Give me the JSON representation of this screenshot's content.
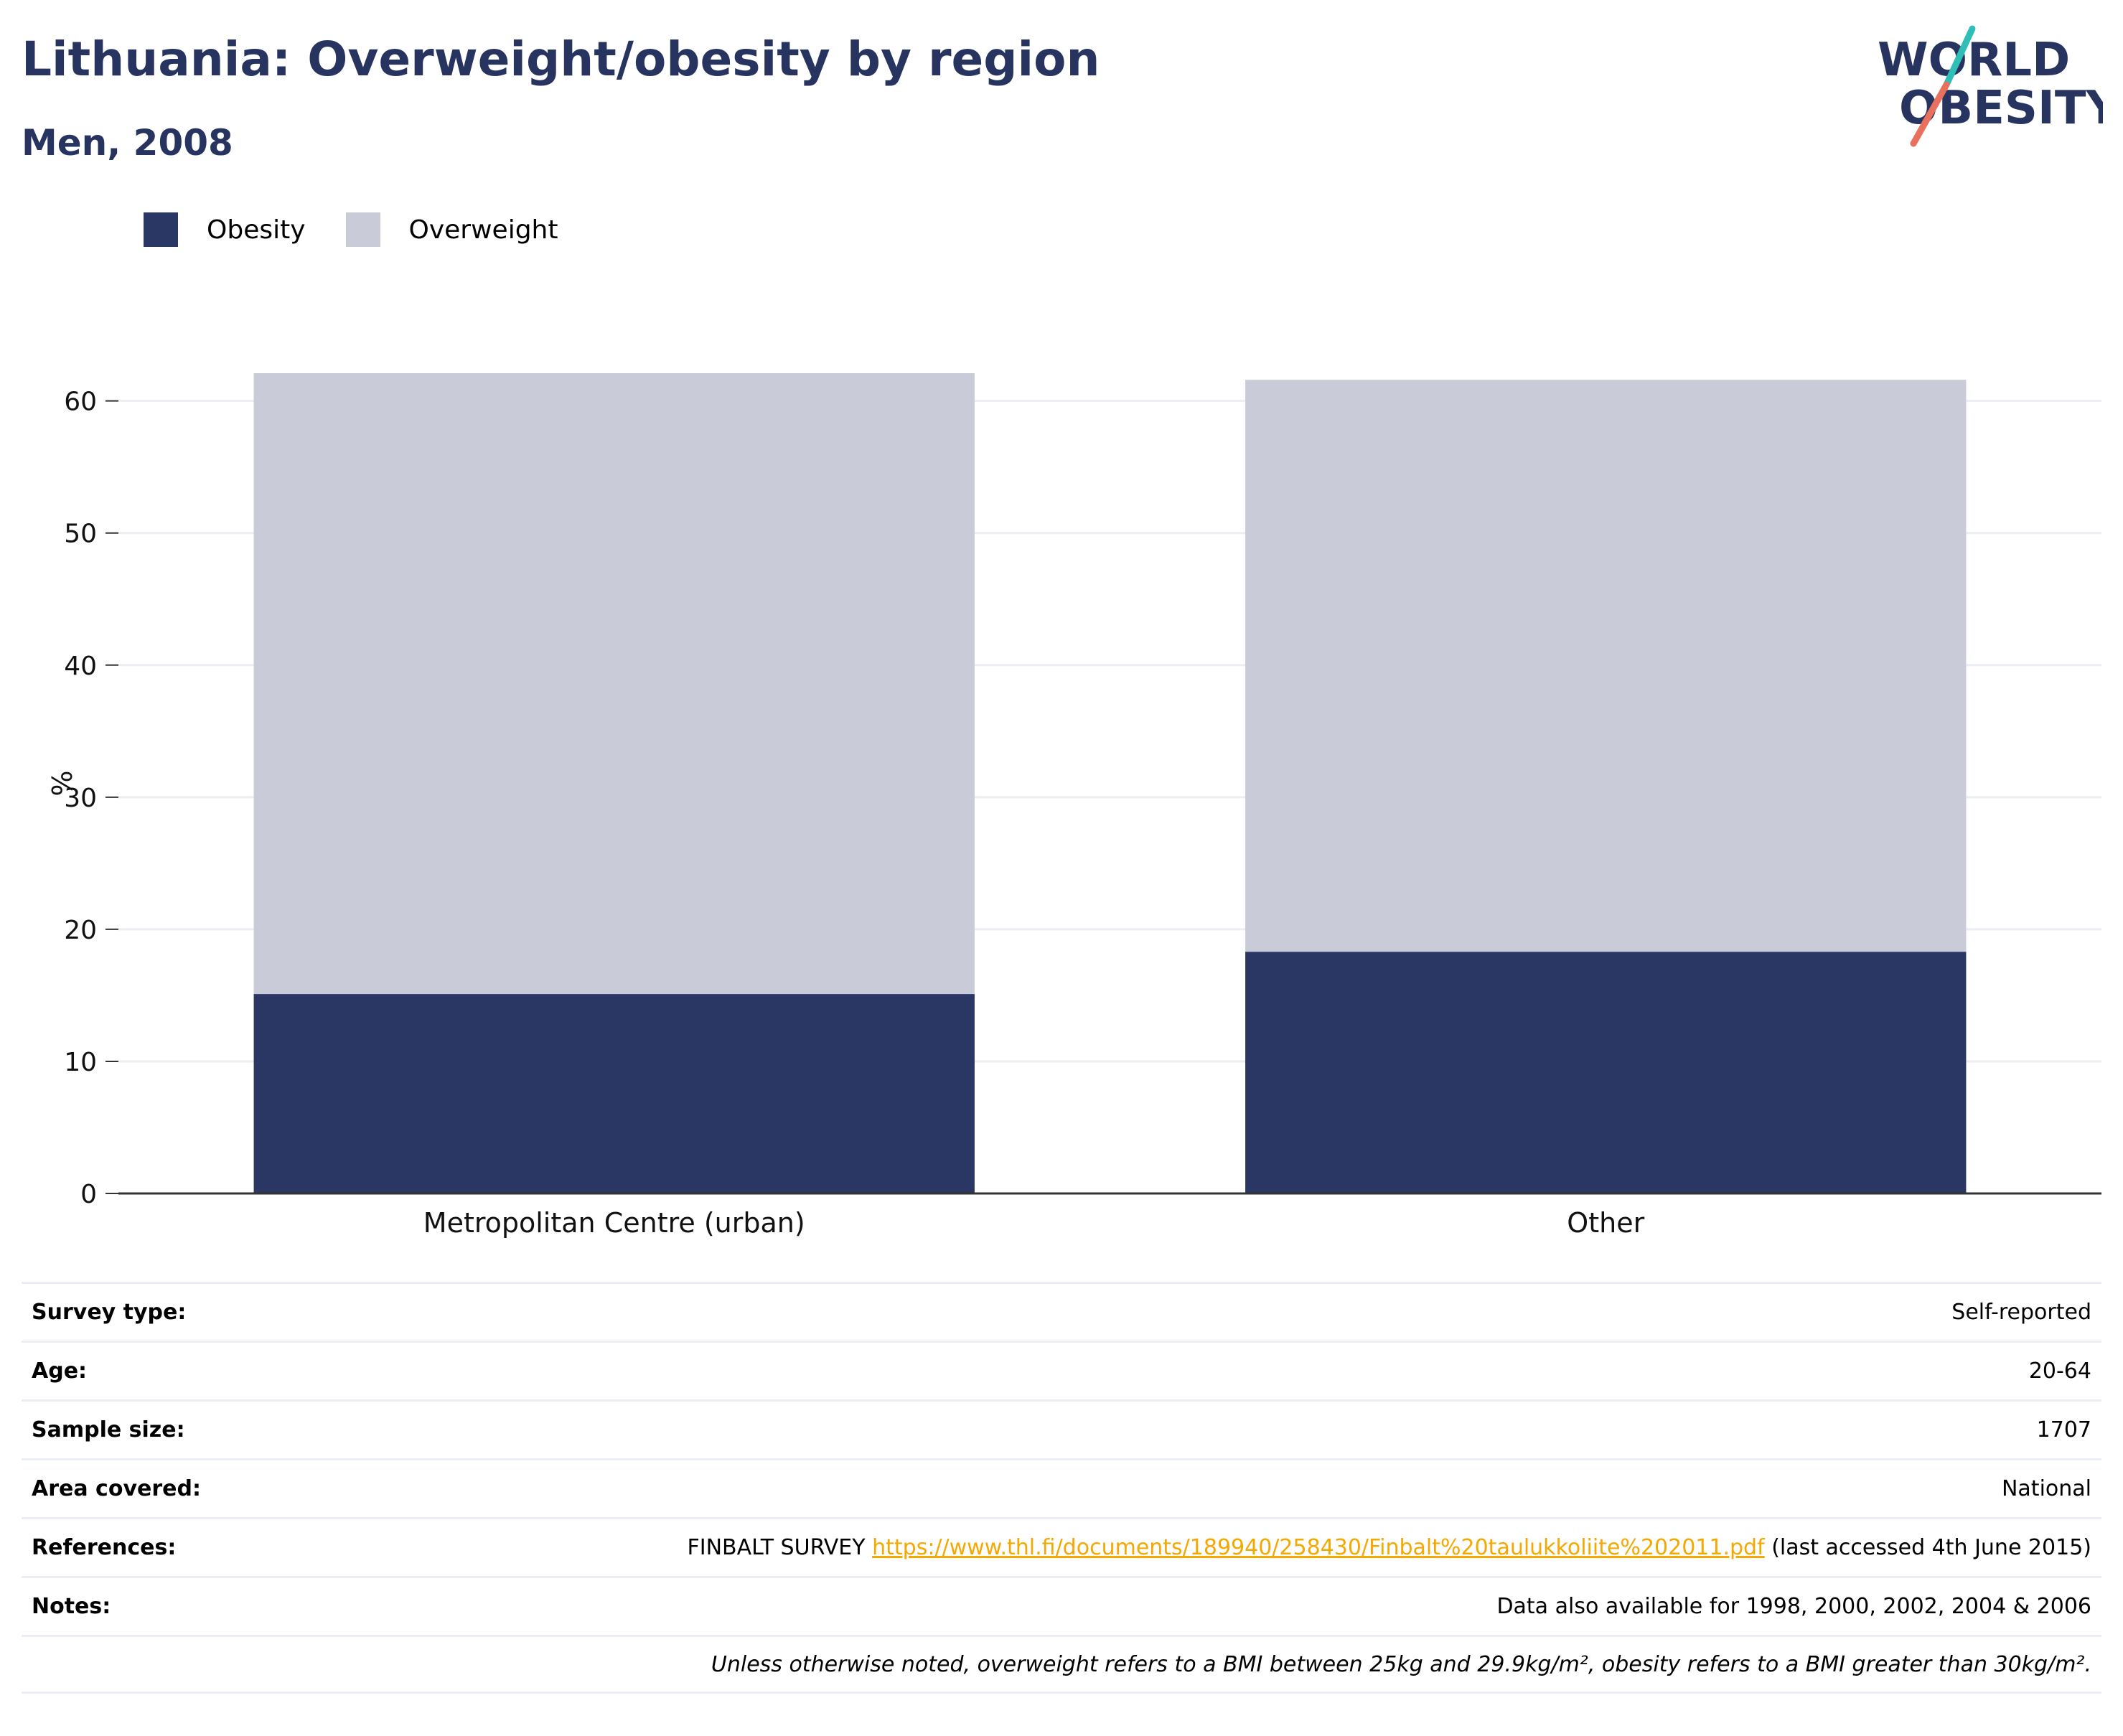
{
  "header": {
    "title": "Lithuania: Overweight/obesity by region",
    "subtitle": "Men, 2008"
  },
  "logo": {
    "line1": "WORLD",
    "line2": "OBESITY",
    "colors": {
      "text": "#283460",
      "slash_top": "#2fbfb6",
      "slash_bottom": "#e8705c"
    }
  },
  "legend": [
    {
      "label": "Obesity",
      "color": "#2a3664"
    },
    {
      "label": "Overweight",
      "color": "#c9ccd8"
    }
  ],
  "chart_data": {
    "type": "bar",
    "stacked": true,
    "categories": [
      "Metropolitan Centre (urban)",
      "Other"
    ],
    "series": [
      {
        "name": "Obesity",
        "values": [
          15.1,
          18.3
        ],
        "color": "#2a3664"
      },
      {
        "name": "Overweight",
        "values": [
          47.0,
          43.3
        ],
        "color": "#c9ccd8"
      }
    ],
    "ylabel": "%",
    "xlabel": "",
    "ylim": [
      0,
      62.1
    ],
    "yticks": [
      0,
      10,
      20,
      30,
      40,
      50,
      60
    ],
    "grid": true,
    "legend_position": "top-left"
  },
  "meta": {
    "survey_type": {
      "label": "Survey type:",
      "value": "Self-reported"
    },
    "age": {
      "label": "Age:",
      "value": "20-64"
    },
    "sample_size": {
      "label": "Sample size:",
      "value": "1707"
    },
    "area": {
      "label": "Area covered:",
      "value": "National"
    },
    "references": {
      "label": "References:",
      "prefix": "FINBALT SURVEY ",
      "link": "https://www.thl.fi/documents/189940/258430/Finbalt%20taulukkoliite%202011.pdf",
      "suffix": " (last accessed 4th June 2015)"
    },
    "notes": {
      "label": "Notes:",
      "value": "Data also available for 1998, 2000, 2002, 2004 & 2006"
    },
    "footnote": "Unless otherwise noted, overweight refers to a BMI between 25kg and 29.9kg/m², obesity refers to a BMI greater than 30kg/m²."
  }
}
